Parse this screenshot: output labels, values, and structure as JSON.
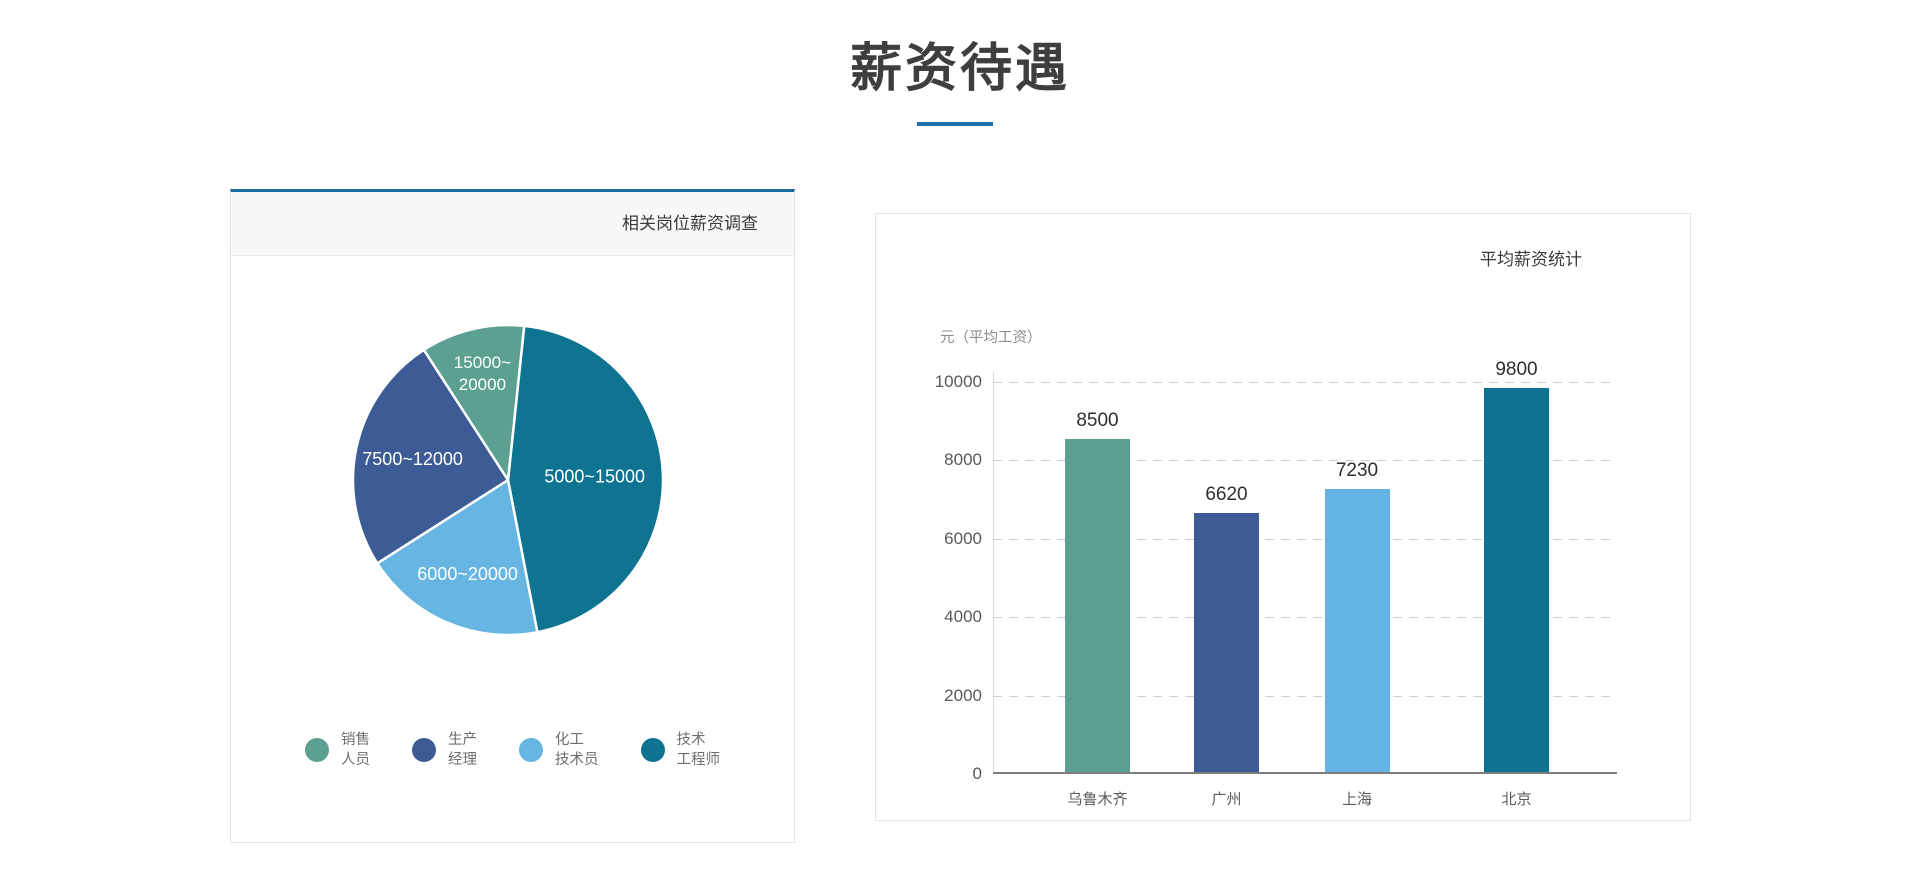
{
  "page": {
    "title": "薪资待遇"
  },
  "theme": {
    "accent_underline": "#1d6fae",
    "card_top_border": "#17699e"
  },
  "pie_card": {
    "header_title": "相关岗位薪资调查"
  },
  "bar_card": {
    "title": "平均薪资统计",
    "y_unit_label": "元（平均工资）"
  },
  "chart_data": [
    {
      "type": "pie",
      "title": "相关岗位薪资调查",
      "start_angle_clockwise_from_12_deg": 6,
      "slices": [
        {
          "range_label": "5000~15000",
          "series": "技术工程师",
          "percent": 45.3,
          "color": "#0f7392",
          "label_radius": 0.56,
          "label_lines": [
            "5000~15000"
          ]
        },
        {
          "range_label": "6000~20000",
          "series": "化工技术员",
          "percent": 19.0,
          "color": "#66b5e2",
          "label_radius": 0.66,
          "label_lines": [
            "6000~20000"
          ]
        },
        {
          "range_label": "7500~12000",
          "series": "生产经理",
          "percent": 24.9,
          "color": "#3d5c96",
          "label_radius": 0.63,
          "label_lines": [
            "7500~12000"
          ]
        },
        {
          "range_label": "15000~20000",
          "series": "销售人员",
          "percent": 10.8,
          "color": "#5ca092",
          "label_radius": 0.71,
          "label_lines": [
            "15000~",
            "20000"
          ]
        }
      ],
      "legend": [
        {
          "name": "销售人员",
          "lines": [
            "销售",
            "人员"
          ],
          "color": "#5ca092"
        },
        {
          "name": "生产经理",
          "lines": [
            "生产",
            "经理"
          ],
          "color": "#3d5c96"
        },
        {
          "name": "化工技术员",
          "lines": [
            "化工",
            "技术员"
          ],
          "color": "#66b5e2"
        },
        {
          "name": "技术工程师",
          "lines": [
            "技术",
            "工程师"
          ],
          "color": "#0e7290"
        }
      ]
    },
    {
      "type": "bar",
      "title": "平均薪资统计",
      "categories": [
        "乌鲁木齐",
        "广州",
        "上海",
        "北京"
      ],
      "values": [
        8500,
        6620,
        7230,
        9800
      ],
      "bar_colors": [
        "#5d9e93",
        "#3d5c96",
        "#64b5e3",
        "#0e7290"
      ],
      "ylabel": "元（平均工资）",
      "ylim": [
        0,
        10000
      ],
      "yticks": [
        0,
        2000,
        4000,
        6000,
        8000,
        10000
      ],
      "grid": "dashed-horizontal",
      "legend_position": "none"
    }
  ]
}
